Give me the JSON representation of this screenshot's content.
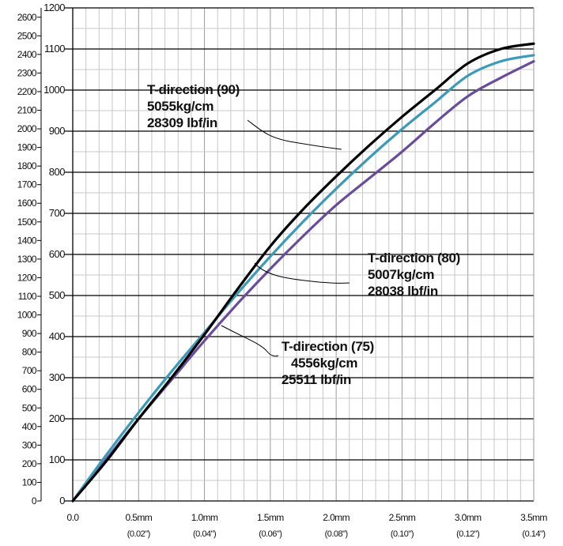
{
  "chart_data": {
    "type": "line",
    "x": [
      0.0,
      0.5,
      1.0,
      1.5,
      2.0,
      2.5,
      3.0,
      3.5
    ],
    "x_tick_labels": [
      {
        "main": "0.0",
        "sub": ""
      },
      {
        "main": "0.5mm",
        "sub": "(0.02\")"
      },
      {
        "main": "1.0mm",
        "sub": "(0.04\")"
      },
      {
        "main": "1.5mm",
        "sub": "(0.06\")"
      },
      {
        "main": "2.0mm",
        "sub": "(0.08\")"
      },
      {
        "main": "2.5mm",
        "sub": "(0.10\")"
      },
      {
        "main": "3.0mm",
        "sub": "(0.12\")"
      },
      {
        "main": "3.5mm",
        "sub": "(0.14\")"
      }
    ],
    "xlim": [
      0,
      3.5
    ],
    "y_outer_ticks": [
      "0",
      "100",
      "200",
      "300",
      "400",
      "500",
      "600",
      "700",
      "800",
      "900",
      "1000",
      "1100",
      "1200",
      "1300",
      "1400",
      "1500",
      "1600",
      "1700",
      "1800",
      "1900",
      "2000",
      "2100",
      "2200",
      "2300",
      "2400",
      "2500",
      "2600"
    ],
    "y_outer_lim": [
      0,
      2650
    ],
    "y_inner_ticks": [
      "0",
      "100",
      "200",
      "300",
      "400",
      "500",
      "600",
      "700",
      "800",
      "900",
      "1000",
      "1100",
      "1200"
    ],
    "ylim": [
      0,
      1200
    ],
    "grid": true,
    "series": [
      {
        "name": "T-direction (90)",
        "color": "#000000",
        "points": [
          [
            0,
            0
          ],
          [
            0.25,
            95
          ],
          [
            0.5,
            200
          ],
          [
            0.75,
            300
          ],
          [
            1.0,
            405
          ],
          [
            1.25,
            515
          ],
          [
            1.5,
            620
          ],
          [
            1.75,
            710
          ],
          [
            2.0,
            790
          ],
          [
            2.25,
            865
          ],
          [
            2.5,
            935
          ],
          [
            2.75,
            1000
          ],
          [
            3.0,
            1065
          ],
          [
            3.25,
            1100
          ],
          [
            3.5,
            1113
          ]
        ]
      },
      {
        "name": "T-direction (80)",
        "color": "#3a9ab8",
        "points": [
          [
            0,
            0
          ],
          [
            0.25,
            110
          ],
          [
            0.5,
            215
          ],
          [
            0.75,
            315
          ],
          [
            1.0,
            410
          ],
          [
            1.25,
            505
          ],
          [
            1.5,
            595
          ],
          [
            1.75,
            680
          ],
          [
            2.0,
            760
          ],
          [
            2.25,
            835
          ],
          [
            2.5,
            905
          ],
          [
            2.75,
            970
          ],
          [
            3.0,
            1035
          ],
          [
            3.25,
            1070
          ],
          [
            3.5,
            1085
          ]
        ]
      },
      {
        "name": "T-direction (75)",
        "color": "#6a4c9c",
        "points": [
          [
            0,
            0
          ],
          [
            0.25,
            100
          ],
          [
            0.5,
            200
          ],
          [
            0.75,
            295
          ],
          [
            1.0,
            390
          ],
          [
            1.25,
            480
          ],
          [
            1.5,
            565
          ],
          [
            1.75,
            645
          ],
          [
            2.0,
            720
          ],
          [
            2.25,
            785
          ],
          [
            2.5,
            850
          ],
          [
            2.75,
            920
          ],
          [
            3.0,
            985
          ],
          [
            3.25,
            1030
          ],
          [
            3.5,
            1070
          ]
        ]
      }
    ],
    "annotations": [
      {
        "series": "T-direction (90)",
        "lines": [
          "T-direction (90)",
          "5055kg/cm",
          "28309 lbf/in"
        ]
      },
      {
        "series": "T-direction (80)",
        "lines": [
          "T-direction (80)",
          "5007kg/cm",
          "28038 lbf/in"
        ]
      },
      {
        "series": "T-direction (75)",
        "lines": [
          "T-direction (75)",
          "4556kg/cm",
          "25511 lbf/in"
        ]
      }
    ]
  }
}
